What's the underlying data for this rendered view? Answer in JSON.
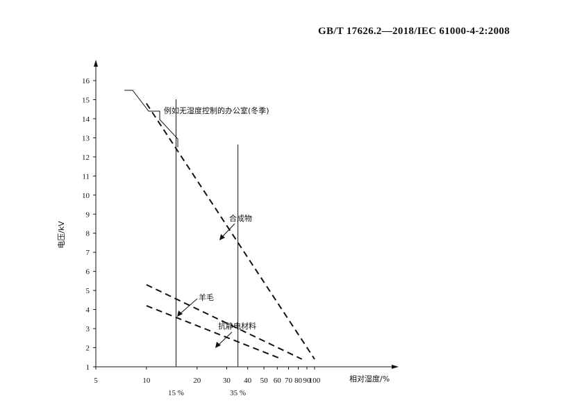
{
  "header": {
    "standard": "GB/T 17626.2—2018/IEC 61000-4-2:2008"
  },
  "chart_data": {
    "type": "line",
    "xlabel": "相对湿度/%",
    "ylabel": "电压/kV",
    "x_scale": "log",
    "xlim": [
      5,
      100
    ],
    "ylim": [
      1,
      16
    ],
    "x_ticks": [
      5,
      10,
      20,
      30,
      40,
      50,
      60,
      70,
      80,
      90,
      100
    ],
    "y_ticks": [
      1,
      2,
      3,
      4,
      5,
      6,
      7,
      8,
      9,
      10,
      11,
      12,
      13,
      14,
      15,
      16
    ],
    "series": [
      {
        "name": "合成物",
        "style": "dashed",
        "x": [
          10,
          100
        ],
        "y": [
          14.8,
          1.4
        ]
      },
      {
        "name": "羊毛",
        "style": "dashed",
        "x": [
          10,
          84
        ],
        "y": [
          5.3,
          1.4
        ]
      },
      {
        "name": "抗静电材料",
        "style": "dashed",
        "x": [
          10,
          64
        ],
        "y": [
          4.2,
          1.4
        ]
      }
    ],
    "vertical_lines": [
      {
        "label": "15 %",
        "x": 15
      },
      {
        "label": "35 %",
        "x": 35
      }
    ],
    "annotations": [
      {
        "text": "例如无湿度控制的办公室(冬季)"
      },
      {
        "text": "合成物"
      },
      {
        "text": "羊毛"
      },
      {
        "text": "抗静电材料"
      }
    ]
  }
}
